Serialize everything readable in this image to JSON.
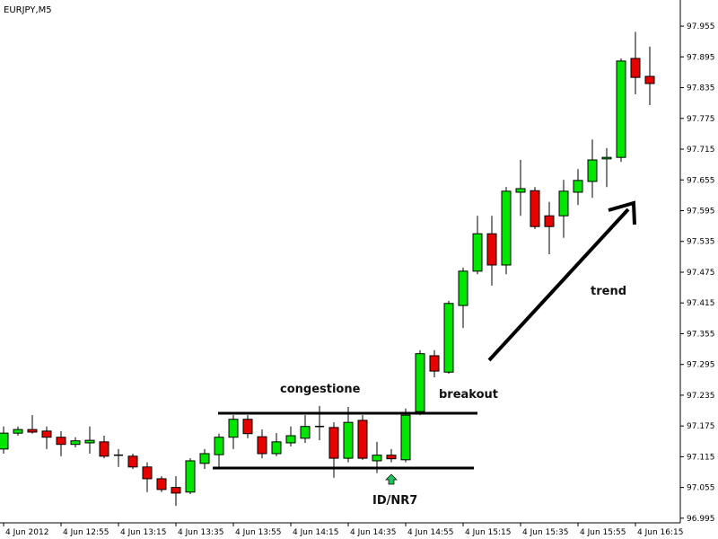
{
  "chart_data": {
    "type": "candlestick",
    "title": "EURJPY,M5",
    "categories": [
      "4 Jun 2012",
      null,
      null,
      null,
      "4 Jun 12:55",
      null,
      null,
      null,
      "4 Jun 13:15",
      null,
      null,
      null,
      "4 Jun 13:35",
      null,
      null,
      null,
      "4 Jun 13:55",
      null,
      null,
      null,
      "4 Jun 14:15",
      null,
      null,
      null,
      "4 Jun 14:35",
      null,
      null,
      null,
      "4 Jun 14:55",
      null,
      null,
      null,
      "4 Jun 15:15",
      null,
      null,
      null,
      "4 Jun 15:35",
      null,
      null,
      null,
      "4 Jun 15:55",
      null,
      null,
      null,
      "4 Jun 16:15",
      null
    ],
    "open": [
      97.13,
      97.161,
      97.168,
      97.165,
      97.153,
      97.139,
      97.142,
      97.144,
      97.118,
      97.116,
      97.095,
      97.072,
      97.055,
      97.046,
      97.102,
      97.119,
      97.153,
      97.188,
      97.154,
      97.121,
      97.142,
      97.151,
      97.174,
      97.172,
      97.112,
      97.186,
      97.107,
      97.118,
      97.109,
      97.203,
      97.312,
      97.28,
      97.41,
      97.477,
      97.55,
      97.489,
      97.631,
      97.634,
      97.585,
      97.585,
      97.631,
      97.652,
      97.696,
      97.699,
      97.892,
      97.857
    ],
    "high": [
      97.174,
      97.174,
      97.196,
      97.174,
      97.165,
      97.153,
      97.174,
      97.156,
      97.13,
      97.121,
      97.104,
      97.077,
      97.077,
      97.112,
      97.13,
      97.16,
      97.196,
      97.196,
      97.168,
      97.161,
      97.174,
      97.196,
      97.214,
      97.182,
      97.212,
      97.196,
      97.144,
      97.13,
      97.209,
      97.323,
      97.323,
      97.419,
      97.484,
      97.585,
      97.585,
      97.641,
      97.694,
      97.641,
      97.612,
      97.655,
      97.676,
      97.734,
      97.717,
      97.892,
      97.944,
      97.915
    ],
    "low": [
      97.121,
      97.156,
      97.16,
      97.13,
      97.116,
      97.133,
      97.121,
      97.112,
      97.095,
      97.091,
      97.046,
      97.046,
      97.019,
      97.042,
      97.091,
      97.095,
      97.13,
      97.151,
      97.112,
      97.116,
      97.135,
      97.142,
      97.147,
      97.074,
      97.104,
      97.109,
      97.083,
      97.104,
      97.104,
      97.196,
      97.27,
      97.277,
      97.366,
      97.471,
      97.449,
      97.471,
      97.585,
      97.559,
      97.51,
      97.542,
      97.606,
      97.62,
      97.641,
      97.69,
      97.822,
      97.801
    ],
    "close": [
      97.161,
      97.168,
      97.163,
      97.153,
      97.139,
      97.146,
      97.147,
      97.116,
      97.118,
      97.095,
      97.072,
      97.051,
      97.044,
      97.107,
      97.121,
      97.153,
      97.188,
      97.16,
      97.121,
      97.144,
      97.156,
      97.174,
      97.174,
      97.112,
      97.182,
      97.112,
      97.118,
      97.111,
      97.196,
      97.316,
      97.282,
      97.414,
      97.477,
      97.55,
      97.489,
      97.633,
      97.638,
      97.564,
      97.564,
      97.633,
      97.654,
      97.694,
      97.699,
      97.887,
      97.855,
      97.843
    ],
    "up_color": "#00e600",
    "down_color": "#e60000",
    "ylim": [
      96.986,
      98.006
    ],
    "yticks": [
      96.995,
      97.055,
      97.115,
      97.175,
      97.235,
      97.295,
      97.355,
      97.415,
      97.475,
      97.535,
      97.595,
      97.655,
      97.715,
      97.775,
      97.835,
      97.895,
      97.955
    ],
    "annotations": [
      "congestione",
      "breakout",
      "trend",
      "ID/NR7"
    ]
  }
}
